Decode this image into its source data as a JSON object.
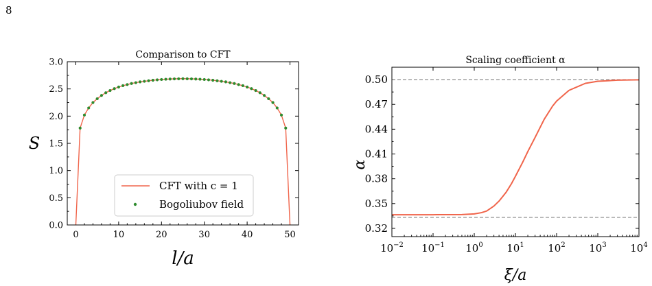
{
  "page_number": "8",
  "chart_data": [
    {
      "type": "line",
      "title": "Comparison to CFT",
      "xlabel": "l/a",
      "ylabel": "S",
      "xlim": [
        -2,
        52
      ],
      "ylim": [
        0.0,
        3.0
      ],
      "xticks": [
        0,
        10,
        20,
        30,
        40,
        50
      ],
      "yticks": [
        0.0,
        0.5,
        1.0,
        1.5,
        2.0,
        2.5,
        3.0
      ],
      "ytick_labels": [
        "0.0",
        "0.5",
        "1.0",
        "1.5",
        "2.0",
        "2.5",
        "3.0"
      ],
      "legend_position": "lower-center",
      "series": [
        {
          "name": "CFT with c = 1",
          "style": "line",
          "color": "#f0644a",
          "x": [
            0,
            1,
            2,
            3,
            4,
            5,
            6,
            7,
            8,
            9,
            10,
            11,
            12,
            13,
            14,
            15,
            16,
            17,
            18,
            19,
            20,
            21,
            22,
            23,
            24,
            25,
            26,
            27,
            28,
            29,
            30,
            31,
            32,
            33,
            34,
            35,
            36,
            37,
            38,
            39,
            40,
            41,
            42,
            43,
            44,
            45,
            46,
            47,
            48,
            49,
            50
          ],
          "y": [
            0.0,
            1.78,
            2.02,
            2.15,
            2.25,
            2.32,
            2.38,
            2.43,
            2.47,
            2.505,
            2.535,
            2.56,
            2.58,
            2.6,
            2.615,
            2.63,
            2.64,
            2.65,
            2.66,
            2.667,
            2.673,
            2.678,
            2.682,
            2.685,
            2.687,
            2.688,
            2.687,
            2.685,
            2.682,
            2.678,
            2.673,
            2.667,
            2.66,
            2.65,
            2.64,
            2.63,
            2.615,
            2.6,
            2.58,
            2.56,
            2.535,
            2.505,
            2.47,
            2.43,
            2.38,
            2.32,
            2.25,
            2.15,
            2.02,
            1.78,
            0.0
          ]
        },
        {
          "name": "Bogoliubov field",
          "style": "points",
          "color": "#2e8b2e",
          "x": [
            1,
            2,
            3,
            4,
            5,
            6,
            7,
            8,
            9,
            10,
            11,
            12,
            13,
            14,
            15,
            16,
            17,
            18,
            19,
            20,
            21,
            22,
            23,
            24,
            25,
            26,
            27,
            28,
            29,
            30,
            31,
            32,
            33,
            34,
            35,
            36,
            37,
            38,
            39,
            40,
            41,
            42,
            43,
            44,
            45,
            46,
            47,
            48,
            49
          ],
          "y": [
            1.78,
            2.02,
            2.15,
            2.25,
            2.32,
            2.38,
            2.43,
            2.47,
            2.505,
            2.535,
            2.56,
            2.58,
            2.6,
            2.615,
            2.63,
            2.64,
            2.65,
            2.66,
            2.667,
            2.673,
            2.678,
            2.682,
            2.685,
            2.687,
            2.688,
            2.687,
            2.685,
            2.682,
            2.678,
            2.673,
            2.667,
            2.66,
            2.65,
            2.64,
            2.63,
            2.615,
            2.6,
            2.58,
            2.56,
            2.535,
            2.505,
            2.47,
            2.43,
            2.38,
            2.32,
            2.25,
            2.15,
            2.02,
            1.78
          ]
        }
      ]
    },
    {
      "type": "line",
      "title": "Scaling coefficient α",
      "xlabel": "ξ/a",
      "ylabel": "α",
      "xscale": "log",
      "xlim": [
        0.01,
        10000
      ],
      "ylim": [
        0.31,
        0.515
      ],
      "xtick_exponents": [
        -2,
        -1,
        0,
        1,
        2,
        3,
        4
      ],
      "xtick_base": "10",
      "yticks": [
        0.32,
        0.35,
        0.38,
        0.41,
        0.44,
        0.47,
        0.5
      ],
      "ytick_labels": [
        "0.32",
        "0.35",
        "0.38",
        "0.41",
        "0.44",
        "0.47",
        "0.50"
      ],
      "hlines": [
        0.5,
        0.3333
      ],
      "hline_color": "#808080",
      "series": [
        {
          "name": "",
          "style": "line",
          "color": "#f0644a",
          "x": [
            0.01,
            0.1,
            0.5,
            1,
            1.5,
            2,
            3,
            4,
            6,
            8,
            10,
            15,
            20,
            30,
            50,
            80,
            100,
            200,
            500,
            1000,
            3000,
            10000
          ],
          "y": [
            0.3365,
            0.3365,
            0.3367,
            0.3375,
            0.339,
            0.341,
            0.347,
            0.353,
            0.364,
            0.374,
            0.383,
            0.4,
            0.413,
            0.43,
            0.452,
            0.468,
            0.474,
            0.487,
            0.4955,
            0.498,
            0.4993,
            0.4997
          ]
        }
      ]
    }
  ]
}
